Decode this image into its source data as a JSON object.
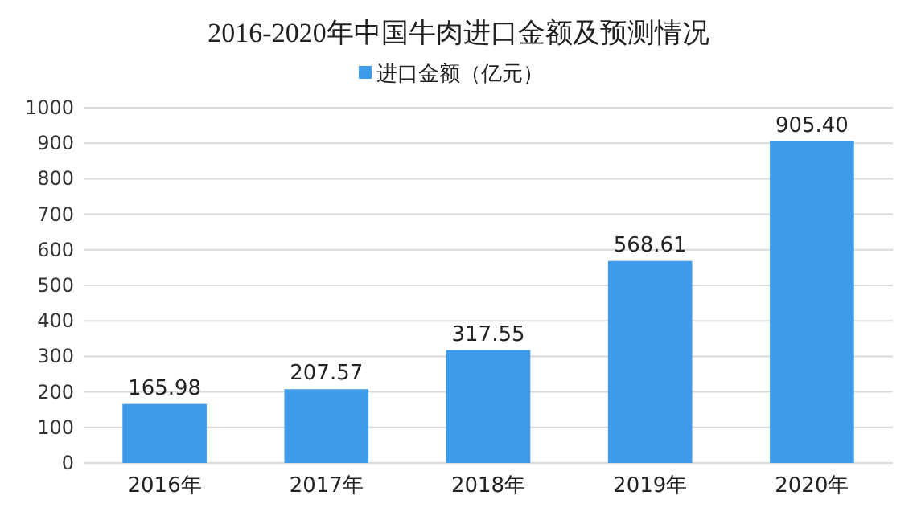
{
  "chart_data": {
    "type": "bar",
    "title": "2016-2020年中国牛肉进口金额及预测情况",
    "categories": [
      "2016年",
      "2017年",
      "2018年",
      "2019年",
      "2020年"
    ],
    "series": [
      {
        "name": "进口金额（亿元）",
        "color": "#3d9be9",
        "values": [
          165.98,
          207.57,
          317.55,
          568.61,
          905.4
        ],
        "value_labels": [
          "165.98",
          "207.57",
          "317.55",
          "568.61",
          "905.40"
        ]
      }
    ],
    "ylim": [
      0,
      1000
    ],
    "yticks": [
      0,
      100,
      200,
      300,
      400,
      500,
      600,
      700,
      800,
      900,
      1000
    ],
    "grid": "y",
    "legend": "top"
  }
}
